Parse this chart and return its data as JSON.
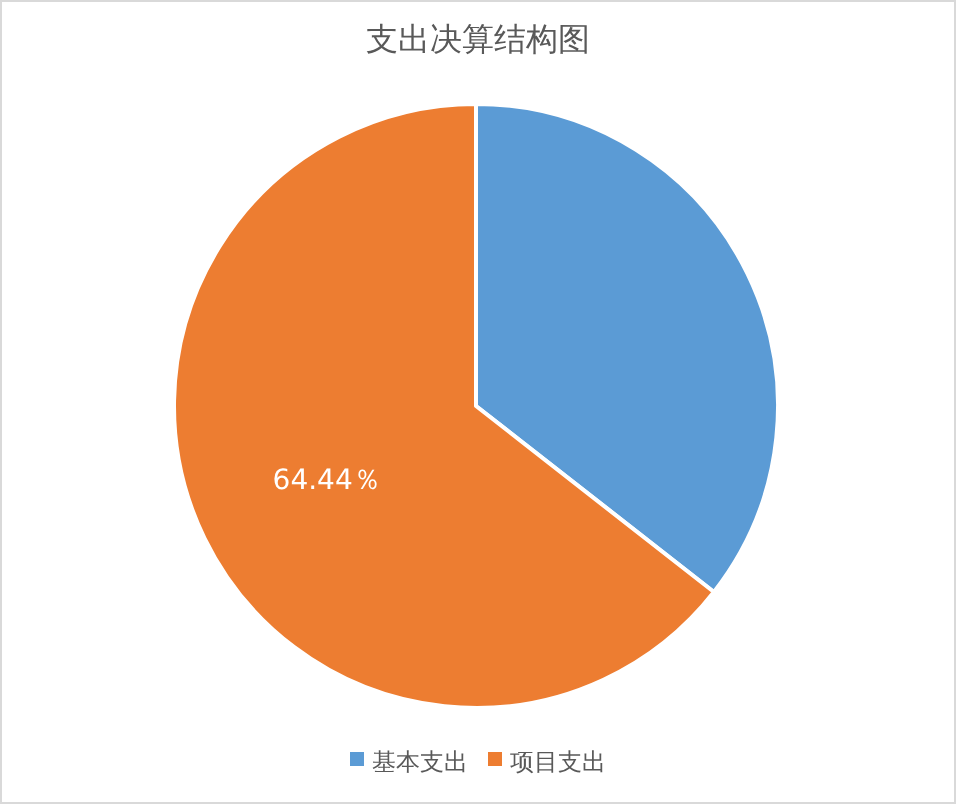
{
  "chart_data": {
    "type": "pie",
    "title": "支出决算结构图",
    "categories": [
      "基本支出",
      "项目支出"
    ],
    "values": [
      35.56,
      64.44
    ],
    "colors": [
      "#5b9bd5",
      "#ed7d31"
    ],
    "value_labels": [
      null,
      "64.44％"
    ],
    "legend": "bottom"
  }
}
